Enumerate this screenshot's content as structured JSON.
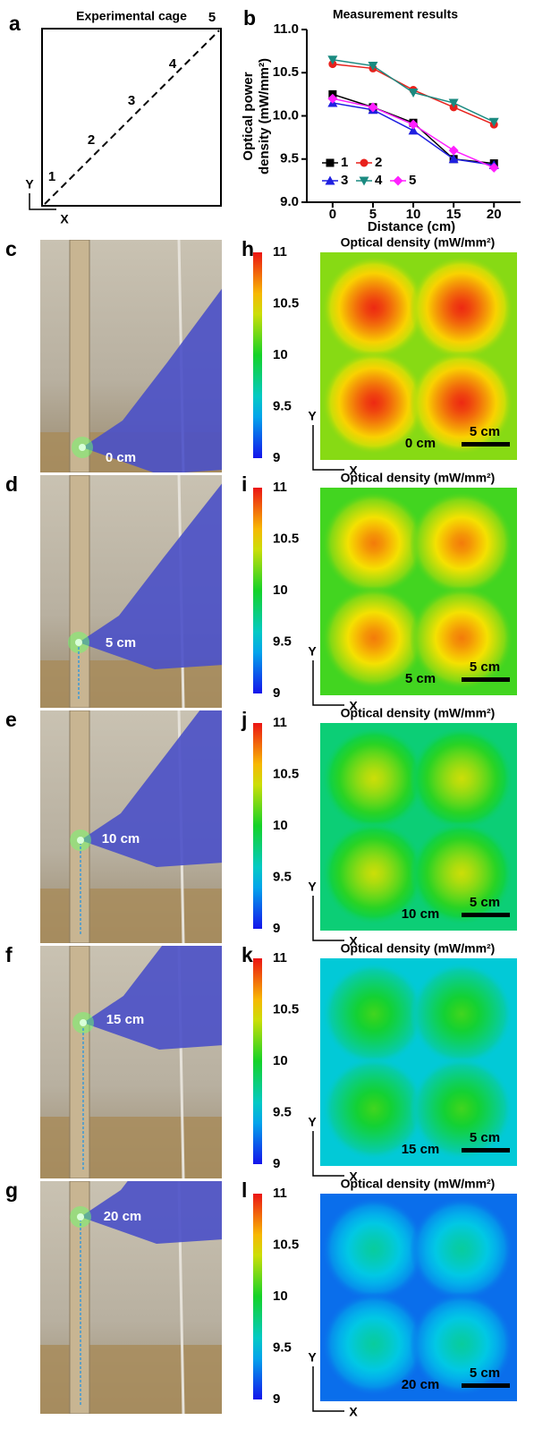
{
  "panel_letters": [
    "a",
    "b",
    "c",
    "d",
    "e",
    "f",
    "g",
    "h",
    "i",
    "j",
    "k",
    "l"
  ],
  "cage": {
    "title": "Experimental cage",
    "points": [
      "1",
      "2",
      "3",
      "4",
      "5"
    ],
    "axes": [
      "Y",
      "X"
    ]
  },
  "chart_data": {
    "type": "line",
    "title": "Measurement results",
    "xlabel": "Distance (cm)",
    "ylabel": [
      "Optical power",
      "density (mW/mm²)"
    ],
    "x": [
      0,
      5,
      10,
      15,
      20
    ],
    "xlim": [
      -3.2,
      23.3
    ],
    "xticks": [
      0,
      5,
      10,
      15,
      20
    ],
    "ylim": [
      9.0,
      11.0
    ],
    "yticks": [
      {
        "value": 9.0,
        "label": "9.0"
      },
      {
        "value": 9.5,
        "label": "9.5"
      },
      {
        "value": 10.0,
        "label": "10.0"
      },
      {
        "value": 10.5,
        "label": "10.5"
      },
      {
        "value": 11.0,
        "label": "11.0"
      }
    ],
    "legend": "lower left",
    "series": [
      {
        "name": "1",
        "color": "#000000",
        "marker": "square",
        "values": [
          10.25,
          10.1,
          9.92,
          9.5,
          9.45
        ]
      },
      {
        "name": "2",
        "color": "#e8211c",
        "marker": "circle",
        "values": [
          10.6,
          10.55,
          10.3,
          10.1,
          9.9
        ]
      },
      {
        "name": "3",
        "color": "#1f1fe0",
        "marker": "triangle",
        "values": [
          10.15,
          10.07,
          9.83,
          9.5,
          9.43
        ]
      },
      {
        "name": "4",
        "color": "#1a8a80",
        "marker": "down-triangle",
        "values": [
          10.65,
          10.58,
          10.27,
          10.15,
          9.93
        ]
      },
      {
        "name": "5",
        "color": "#ff1fff",
        "marker": "diamond",
        "values": [
          10.2,
          10.1,
          9.9,
          9.6,
          9.4
        ]
      }
    ]
  },
  "colorbar": {
    "range": [
      9,
      11
    ],
    "ticks": [
      11,
      10.5,
      10,
      9.5,
      9
    ]
  },
  "map_title": "Optical density (mW/mm²)",
  "map_axes": [
    "Y",
    "X"
  ],
  "scale_bar": "5 cm",
  "rows": [
    {
      "photo_label": "0 cm",
      "map_label": "0 cm",
      "peak": 10.95,
      "background": 10.25
    },
    {
      "photo_label": "5 cm",
      "map_label": "5 cm",
      "peak": 10.75,
      "background": 10.1
    },
    {
      "photo_label": "10 cm",
      "map_label": "10 cm",
      "peak": 10.4,
      "background": 9.8
    },
    {
      "photo_label": "15 cm",
      "map_label": "15 cm",
      "peak": 10.1,
      "background": 9.55
    },
    {
      "photo_label": "20 cm",
      "map_label": "20 cm",
      "peak": 9.7,
      "background": 9.25
    }
  ]
}
